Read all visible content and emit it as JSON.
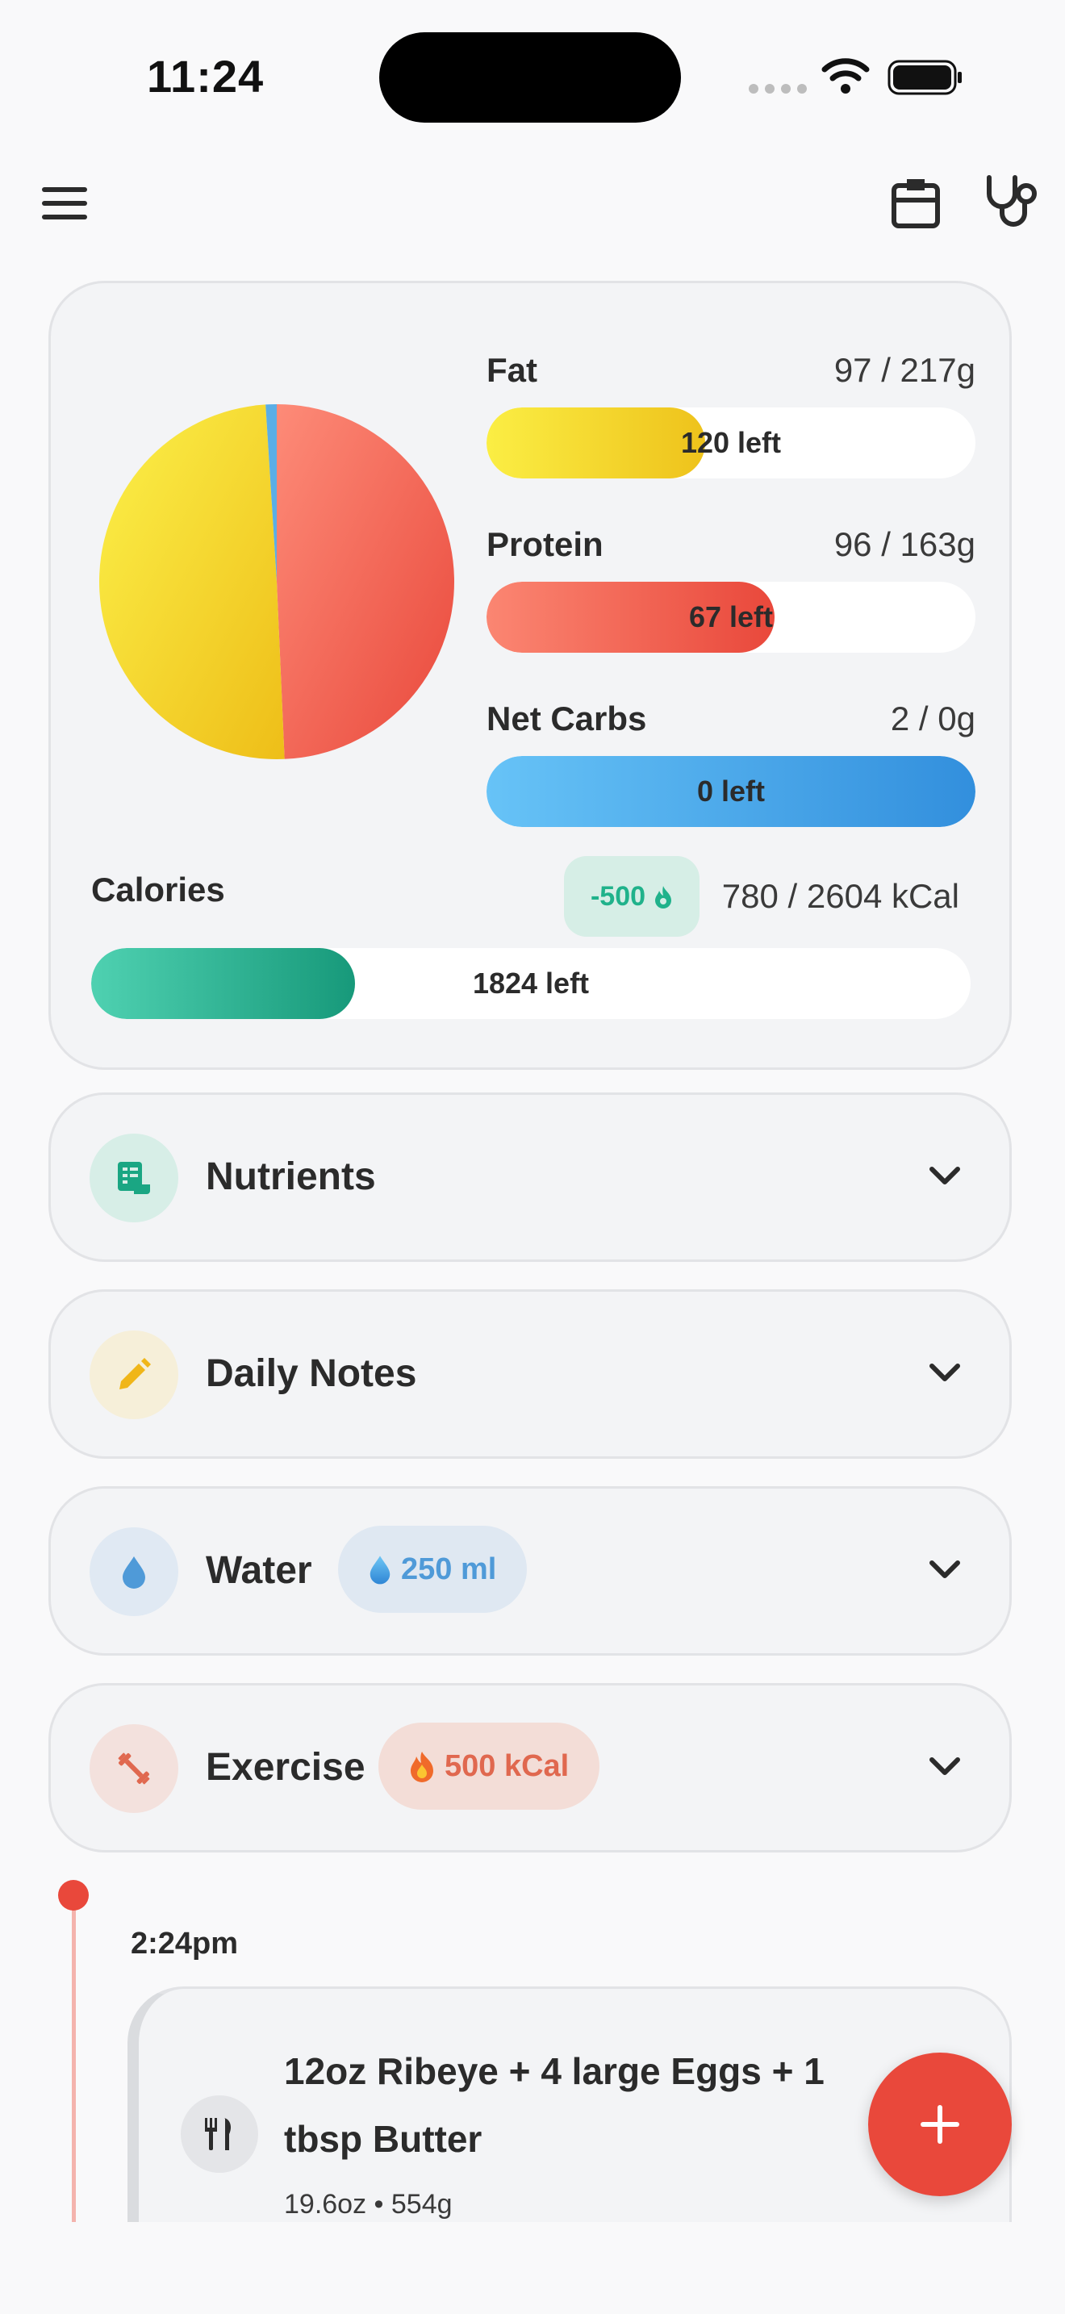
{
  "status_bar": {
    "time": "11:24"
  },
  "macros": [
    {
      "name": "Fat",
      "value": "97 / 217g",
      "left_label": "120 left",
      "progress": 0.447
    },
    {
      "name": "Protein",
      "value": "96 / 163g",
      "left_label": "67 left",
      "progress": 0.589
    },
    {
      "name": "Net Carbs",
      "value": "2 / 0g",
      "left_label": "0 left",
      "progress": 1.0
    }
  ],
  "pie": {
    "slices": [
      {
        "name": "Protein",
        "share": 0.493,
        "color": "#ef5a46"
      },
      {
        "name": "Fat",
        "share": 0.497,
        "color": "#f6d52d"
      },
      {
        "name": "Net Carbs",
        "share": 0.01,
        "color": "#5aaee6"
      }
    ]
  },
  "calories": {
    "label": "Calories",
    "burned_badge": "-500",
    "value": "780 / 2604 kCal",
    "left_label": "1824 left",
    "progress": 0.3
  },
  "sections": {
    "nutrients": {
      "title": "Nutrients",
      "icon": "nutrients-icon",
      "color": "#1aa683"
    },
    "notes": {
      "title": "Daily Notes",
      "icon": "pencil-icon",
      "color": "#f0b619"
    },
    "water": {
      "title": "Water",
      "badge": "250 ml",
      "icon": "water-drop-icon",
      "color": "#4f9ad8"
    },
    "exercise": {
      "title": "Exercise",
      "badge": "500 kCal",
      "icon": "dumbbell-icon",
      "color": "#e0684f"
    }
  },
  "timeline": {
    "time": "2:24pm",
    "meal": {
      "title": "12oz Ribeye + 4 large Eggs + 1 tbsp Butter",
      "subtitle": "19.6oz • 554g",
      "icon": "utensils-icon"
    }
  },
  "colors": {
    "accent": "#e9483b",
    "calories": "#17997a",
    "fat": "#f6d52d",
    "protein": "#ef5a46",
    "carbs": "#5aaee6"
  }
}
